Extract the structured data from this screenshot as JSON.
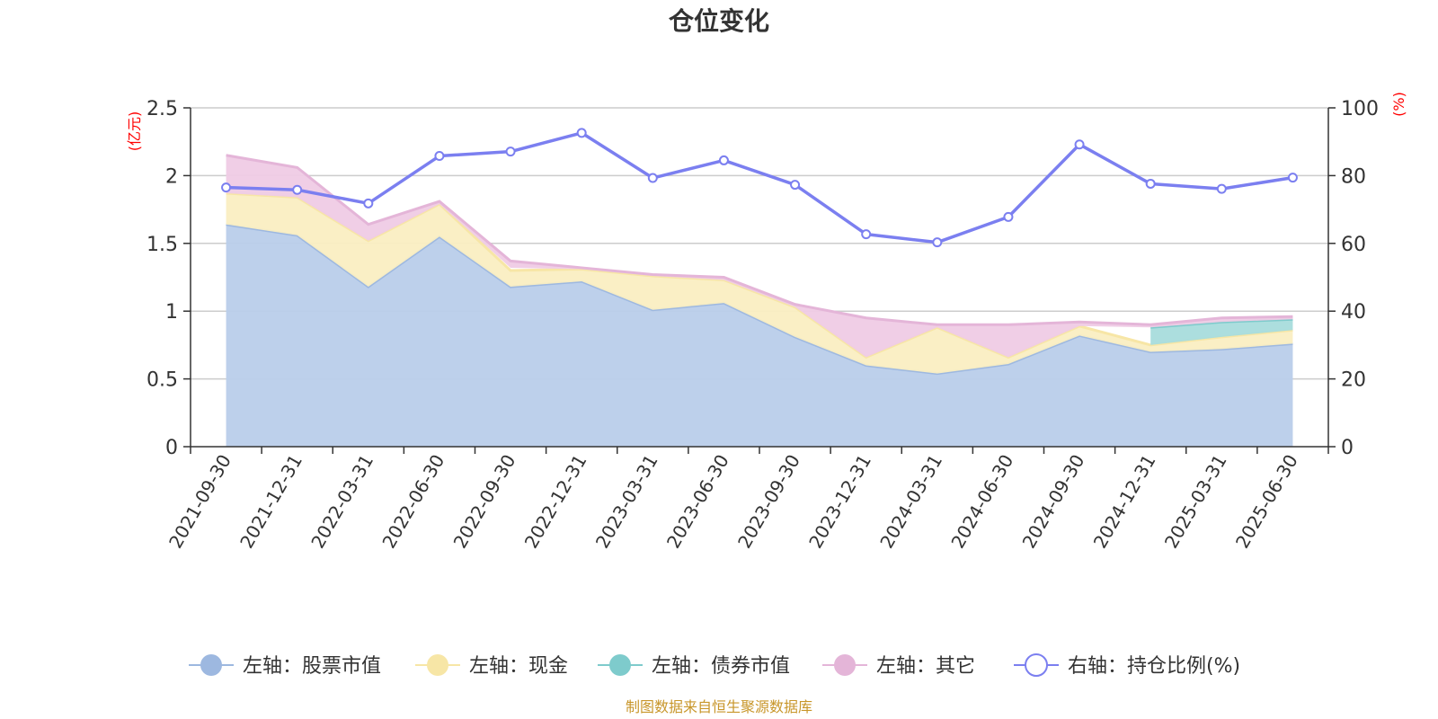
{
  "chart_data": {
    "type": "area",
    "title": "仓位变化",
    "categories": [
      "2021-09-30",
      "2021-12-31",
      "2022-03-31",
      "2022-06-30",
      "2022-09-30",
      "2022-12-31",
      "2023-03-31",
      "2023-06-30",
      "2023-09-30",
      "2023-12-31",
      "2024-03-31",
      "2024-06-30",
      "2024-09-30",
      "2024-12-31",
      "2025-03-31",
      "2025-06-30"
    ],
    "y_left": {
      "unit": "(亿元)",
      "range": [
        0,
        2.5
      ],
      "ticks": [
        "0",
        "0.5",
        "1",
        "1.5",
        "2",
        "2.5"
      ],
      "tick_values": [
        0,
        0.5,
        1,
        1.5,
        2,
        2.5
      ]
    },
    "y_right": {
      "unit": "(%)",
      "range": [
        0,
        100
      ],
      "ticks": [
        "0",
        "20",
        "40",
        "60",
        "80",
        "100"
      ],
      "tick_values": [
        0,
        20,
        40,
        60,
        80,
        100
      ]
    },
    "grid": true,
    "legend_position": "bottom",
    "series": [
      {
        "name": "左轴：股票市值",
        "axis": "left",
        "stack": true,
        "color": "#9db8e0",
        "fill": "#b9cdea",
        "values": [
          1.64,
          1.56,
          1.18,
          1.55,
          1.18,
          1.22,
          1.01,
          1.06,
          0.81,
          0.6,
          0.54,
          0.61,
          0.82,
          0.7,
          0.72,
          0.76
        ]
      },
      {
        "name": "左轴：现金",
        "axis": "left",
        "stack": true,
        "color": "#f7e6a6",
        "fill": "#faeec2",
        "values": [
          0.23,
          0.28,
          0.34,
          0.24,
          0.12,
          0.09,
          0.25,
          0.17,
          0.22,
          0.06,
          0.34,
          0.05,
          0.07,
          0.05,
          0.09,
          0.1
        ]
      },
      {
        "name": "左轴：债券市值",
        "axis": "left",
        "stack": true,
        "color": "#7ecbcc",
        "fill": "#a8dcdc",
        "values": [
          0,
          0,
          0,
          0,
          0.02,
          0,
          0,
          0,
          0,
          0,
          0,
          0,
          0,
          0.13,
          0.11,
          0.08
        ]
      },
      {
        "name": "左轴：其它",
        "axis": "left",
        "stack": true,
        "color": "#e4b5d8",
        "fill": "#efcbe5",
        "values": [
          0.28,
          0.22,
          0.12,
          0.02,
          0.05,
          0.01,
          0.01,
          0.02,
          0.02,
          0.29,
          0.02,
          0.24,
          0.03,
          0.02,
          0.03,
          0.02
        ]
      },
      {
        "name": "右轴：持仓比例(%)",
        "axis": "right",
        "type": "line",
        "color": "#7b7ff0",
        "values": [
          76.5,
          75.8,
          71.8,
          85.8,
          87.1,
          92.6,
          79.3,
          84.5,
          77.3,
          62.7,
          60.3,
          67.8,
          89.2,
          77.6,
          76.1,
          79.4
        ]
      }
    ]
  },
  "footer": {
    "source": "制图数据来自恒生聚源数据库"
  }
}
